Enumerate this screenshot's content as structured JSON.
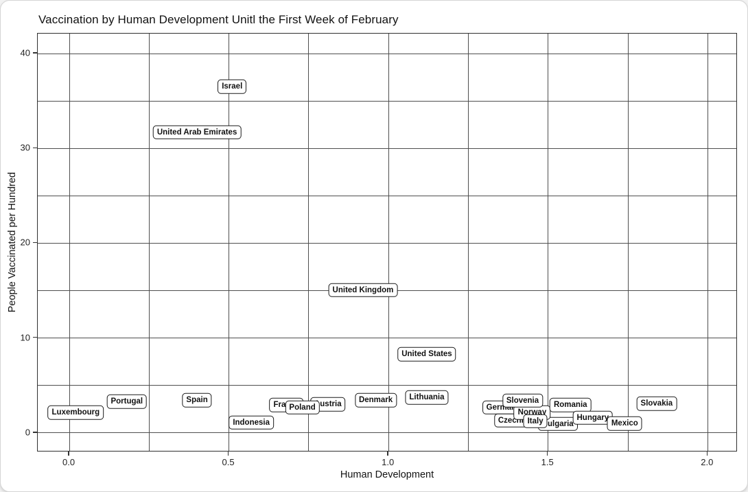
{
  "chart_data": {
    "type": "scatter",
    "title": "Vaccination by Human Development Unitl the First Week of February",
    "xlabel": "Human Development",
    "ylabel": "People Vaccinated per Hundred",
    "xlim": [
      -0.099,
      2.094
    ],
    "ylim": [
      -2.03,
      42.1
    ],
    "x_ticks": [
      0.0,
      0.5,
      1.0,
      1.5,
      2.0
    ],
    "x_tick_labels": [
      "0.0",
      "0.5",
      "1.0",
      "1.5",
      "2.0"
    ],
    "y_ticks": [
      0,
      10,
      20,
      30,
      40
    ],
    "y_tick_labels": [
      "0",
      "10",
      "20",
      "30",
      "40"
    ],
    "x_grid_step": 0.25,
    "y_grid_step": 5,
    "grid": true,
    "legend": "none",
    "marker_style": "text-label-box",
    "points": [
      {
        "label": "France",
        "x": 0.68,
        "y": 2.95
      },
      {
        "label": "Austria",
        "x": 0.81,
        "y": 3.0
      },
      {
        "label": "Poland",
        "x": 0.73,
        "y": 2.7
      },
      {
        "label": "Germany",
        "x": 1.36,
        "y": 2.7
      },
      {
        "label": "Bulgaria",
        "x": 1.53,
        "y": 0.95
      },
      {
        "label": "Czechia",
        "x": 1.39,
        "y": 1.3
      },
      {
        "label": "Norway",
        "x": 1.45,
        "y": 2.15
      },
      {
        "label": "Slovenia",
        "x": 1.42,
        "y": 3.4
      },
      {
        "label": "Italy",
        "x": 1.46,
        "y": 1.25
      },
      {
        "label": "Romania",
        "x": 1.57,
        "y": 2.95
      },
      {
        "label": "Hungary",
        "x": 1.64,
        "y": 1.6
      },
      {
        "label": "Mexico",
        "x": 1.74,
        "y": 1.0
      },
      {
        "label": "Luxembourg",
        "x": 0.02,
        "y": 2.15
      },
      {
        "label": "Portugal",
        "x": 0.18,
        "y": 3.3
      },
      {
        "label": "Spain",
        "x": 0.4,
        "y": 3.45
      },
      {
        "label": "Indonesia",
        "x": 0.57,
        "y": 1.1
      },
      {
        "label": "Denmark",
        "x": 0.96,
        "y": 3.45
      },
      {
        "label": "Lithuania",
        "x": 1.12,
        "y": 3.75
      },
      {
        "label": "Slovakia",
        "x": 1.84,
        "y": 3.1
      },
      {
        "label": "Israel",
        "x": 0.51,
        "y": 36.5
      },
      {
        "label": "United Arab Emirates",
        "x": 0.4,
        "y": 31.7
      },
      {
        "label": "United Kingdom",
        "x": 0.92,
        "y": 15.05
      },
      {
        "label": "United States",
        "x": 1.12,
        "y": 8.3
      }
    ]
  },
  "colors": {
    "grid": "#4e4e4e",
    "panel_border": "#2e2e2e",
    "label_border": "#1a1a1a",
    "label_fill": "#ffffff",
    "text": "#111111"
  }
}
